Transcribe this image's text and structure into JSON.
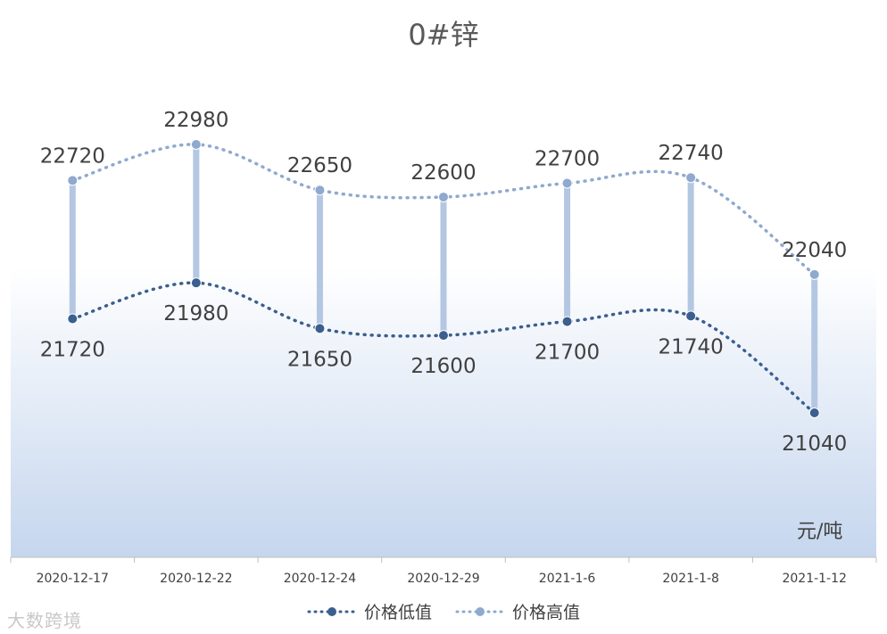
{
  "chart_data": {
    "type": "line",
    "title": "0#锌",
    "unit": "元/吨",
    "categories": [
      "2020-12-17",
      "2020-12-22",
      "2020-12-24",
      "2020-12-29",
      "2021-1-6",
      "2021-1-8",
      "2021-1-12"
    ],
    "series": [
      {
        "name": "价格低值",
        "values": [
          21720,
          21980,
          21650,
          21600,
          21700,
          21740,
          21040
        ],
        "color": "#3b5f8f"
      },
      {
        "name": "价格高值",
        "values": [
          22720,
          22980,
          22650,
          22600,
          22700,
          22740,
          22040
        ],
        "color": "#8fa9cf"
      }
    ],
    "grid": false,
    "legend_position": "bottom"
  },
  "watermark": "大数跨境"
}
